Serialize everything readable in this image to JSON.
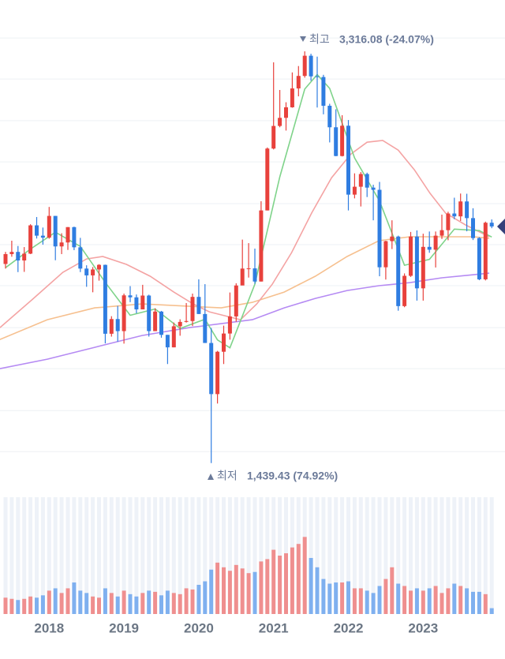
{
  "chart_data": {
    "type": "candlestick",
    "categories": [
      null,
      null,
      null,
      null,
      null,
      null,
      null,
      "2018",
      null,
      null,
      null,
      null,
      null,
      null,
      null,
      null,
      null,
      null,
      null,
      "2019",
      null,
      null,
      null,
      null,
      null,
      null,
      null,
      null,
      null,
      null,
      null,
      "2020",
      null,
      null,
      null,
      null,
      null,
      null,
      null,
      null,
      null,
      null,
      null,
      "2021",
      null,
      null,
      null,
      null,
      null,
      null,
      null,
      null,
      null,
      null,
      null,
      "2022",
      null,
      null,
      null,
      null,
      null,
      null,
      null,
      null,
      null,
      null,
      null,
      "2023",
      null,
      null,
      null,
      null,
      null,
      null,
      null,
      null,
      null,
      null,
      null
    ],
    "open": [
      2347,
      2392,
      2402,
      2363,
      2394,
      2523,
      2476,
      2467,
      2566,
      2427,
      2445,
      2515,
      2423,
      2326,
      2295,
      2322,
      2343,
      2029,
      2096,
      2041,
      2204,
      2195,
      2140,
      2203,
      2041,
      2130,
      2024,
      1967,
      2063,
      2083,
      2087,
      2197,
      2119,
      1987,
      1754,
      1947,
      2030,
      2108,
      2249,
      2326,
      2327,
      2267,
      2591,
      2873,
      2976,
      3013,
      3061,
      3147,
      3204,
      3296,
      3202,
      3199,
      3068,
      2970,
      2839,
      2977,
      2663,
      2699,
      2757,
      2695,
      2685,
      2332,
      2451,
      2472,
      2155,
      2293,
      2472,
      2236,
      2425,
      2412,
      2476,
      2501,
      2577,
      2564,
      2632,
      2556,
      2465,
      2277,
      2535
    ],
    "high": [
      2402,
      2453,
      2429,
      2424,
      2528,
      2561,
      2513,
      2607,
      2566,
      2487,
      2515,
      2517,
      2466,
      2341,
      2333,
      2346,
      2344,
      2109,
      2156,
      2212,
      2246,
      2208,
      2252,
      2207,
      2145,
      2133,
      2024,
      2080,
      2095,
      2169,
      2212,
      2277,
      2255,
      2055,
      1951,
      2066,
      2217,
      2259,
      2458,
      2442,
      2417,
      2633,
      2878,
      3266,
      3140,
      3084,
      3220,
      3249,
      3316.08,
      3305,
      3292,
      3209,
      3077,
      3052,
      3025,
      3003,
      2760,
      2766,
      2763,
      2708,
      2721,
      2453,
      2546,
      2476,
      2304,
      2493,
      2500,
      2485,
      2495,
      2495,
      2572,
      2585,
      2649,
      2668,
      2667,
      2601,
      2469,
      2540,
      2550
    ],
    "low": [
      2326,
      2380,
      2310,
      2311,
      2392,
      2463,
      2435,
      2462,
      2364,
      2392,
      2411,
      2410,
      2310,
      2243,
      2218,
      2271,
      1985,
      2016,
      1993,
      1984,
      2173,
      2122,
      2140,
      2016,
      2041,
      2011,
      1891,
      1967,
      2020,
      2080,
      2064,
      2119,
      1987,
      1439.43,
      1711,
      1891,
      2002,
      2084,
      2250,
      2285,
      2257,
      2267,
      2591,
      2869,
      2970,
      2955,
      3059,
      3111,
      3196,
      3182,
      3060,
      3029,
      2901,
      2838,
      2837,
      2591,
      2646,
      2609,
      2652,
      2546,
      2291,
      2276,
      2415,
      2134,
      2150,
      2288,
      2180,
      2180,
      2398,
      2331,
      2461,
      2455,
      2551,
      2543,
      2496,
      2456,
      2273,
      2272,
      2510
    ],
    "close": [
      2392,
      2402,
      2363,
      2394,
      2523,
      2476,
      2467,
      2566,
      2427,
      2445,
      2515,
      2423,
      2326,
      2295,
      2322,
      2343,
      2029,
      2096,
      2041,
      2204,
      2195,
      2140,
      2203,
      2041,
      2130,
      2024,
      1967,
      2063,
      2083,
      2087,
      2197,
      2119,
      1987,
      1754,
      1947,
      2030,
      2108,
      2249,
      2326,
      2327,
      2267,
      2591,
      2873,
      2976,
      3013,
      3061,
      3147,
      3204,
      3296,
      3202,
      3199,
      3068,
      2970,
      2839,
      2977,
      2663,
      2699,
      2757,
      2695,
      2685,
      2332,
      2451,
      2472,
      2155,
      2293,
      2472,
      2236,
      2425,
      2412,
      2476,
      2501,
      2577,
      2564,
      2632,
      2556,
      2465,
      2277,
      2535,
      2518
    ],
    "volume": [
      14,
      13,
      12,
      13,
      15,
      14,
      16,
      20,
      22,
      18,
      22,
      27,
      20,
      18,
      15,
      14,
      22,
      18,
      15,
      20,
      17,
      15,
      18,
      20,
      19,
      16,
      20,
      18,
      17,
      22,
      21,
      25,
      28,
      38,
      44,
      40,
      37,
      42,
      39,
      35,
      36,
      45,
      47,
      55,
      50,
      52,
      57,
      60,
      66,
      48,
      40,
      30,
      26,
      27,
      27,
      28,
      22,
      22,
      20,
      18,
      24,
      30,
      40,
      26,
      24,
      20,
      22,
      20,
      22,
      24,
      18,
      22,
      26,
      24,
      22,
      19,
      19,
      17,
      5
    ],
    "up_color": "#e8413c",
    "down_color": "#2f7de1",
    "volume_up_color": "#ef8f8f",
    "volume_down_color": "#7fb0ef",
    "ylim": [
      1356,
      3550
    ],
    "yticks": [
      3377,
      3190,
      3000,
      2812,
      2622,
      2435,
      2248,
      2057,
      1870,
      1679,
      1492
    ],
    "volume_lim": [
      0,
      100
    ],
    "grid": true,
    "moving_averages": [
      {
        "color": "#b58af3",
        "x": [
          -0.9,
          6.7,
          14.3,
          21.9,
          29.5,
          34.6,
          39.6,
          44.7,
          49.7,
          54.8,
          59.9,
          64.9,
          70,
          75.1,
          77.6
        ],
        "values": [
          1870,
          1913,
          1967,
          2021,
          2057,
          2075,
          2093,
          2147,
          2190,
          2226,
          2248,
          2262,
          2284,
          2298,
          2305
        ]
      },
      {
        "color": "#f6c08f",
        "x": [
          -0.9,
          6.7,
          14.3,
          21.9,
          29.5,
          34.6,
          39.6,
          44.7,
          49.7,
          54.8,
          59.9,
          64.9,
          70,
          75.1,
          77.6
        ],
        "values": [
          2003,
          2093,
          2147,
          2165,
          2154,
          2147,
          2172,
          2219,
          2291,
          2381,
          2453,
          2471,
          2471,
          2471,
          2464
        ]
      },
      {
        "color": "#f4a3a3",
        "x": [
          -0.9,
          4.2,
          9.2,
          13,
          15.6,
          19.4,
          23.2,
          27,
          30.1,
          32.7,
          35.2,
          37.7,
          40.3,
          42.8,
          45.9,
          49.1,
          52.3,
          55.4,
          58,
          60.5,
          63,
          65.6,
          68.1,
          70.6,
          73.8,
          77.6
        ],
        "values": [
          2057,
          2183,
          2309,
          2370,
          2381,
          2345,
          2291,
          2219,
          2165,
          2129,
          2111,
          2093,
          2165,
          2255,
          2399,
          2579,
          2740,
          2848,
          2902,
          2910,
          2866,
          2776,
          2669,
          2579,
          2525,
          2471
        ]
      },
      {
        "color": "#7fd38a",
        "x": [
          0,
          4,
          8,
          12,
          16,
          20,
          24,
          28,
          32,
          34,
          36,
          40,
          44,
          48,
          50,
          52,
          56,
          60,
          64,
          68,
          72,
          76,
          78
        ],
        "values": [
          2330,
          2415,
          2492,
          2427,
          2263,
          2113,
          2142,
          2053,
          2095,
          2001,
          1965,
          2255,
          2744,
          3144,
          3210,
          3147,
          2830,
          2634,
          2341,
          2368,
          2506,
          2499,
          2470
        ]
      }
    ],
    "annotations": [
      {
        "label": "최고",
        "text": "3,316.08 (-24.07%)"
      },
      {
        "label": "최저",
        "text": "1,439.43 (74.92%)"
      }
    ]
  }
}
